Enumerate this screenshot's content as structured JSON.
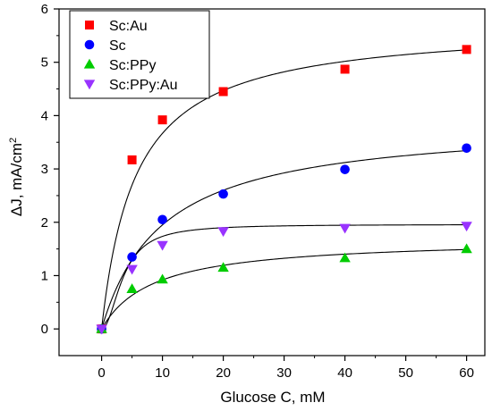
{
  "chart_data": {
    "type": "scatter",
    "title": "",
    "xlabel": "Glucose C, mM",
    "ylabel_main": "ΔJ, mA/cm",
    "ylabel_sup": "2",
    "xlim": [
      -7,
      63
    ],
    "ylim": [
      -0.5,
      6
    ],
    "xticks": [
      0,
      10,
      20,
      30,
      40,
      50,
      60
    ],
    "yticks": [
      0,
      1,
      2,
      3,
      4,
      5,
      6
    ],
    "grid": false,
    "legend_position": "top-left",
    "series": [
      {
        "name": "Sc:Au",
        "marker": "square",
        "color": "#ff0000",
        "x": [
          0,
          5,
          10,
          20,
          40,
          60
        ],
        "y": [
          0.0,
          3.17,
          3.92,
          4.45,
          4.87,
          5.24
        ],
        "fit": {
          "model": "michaelis-menten",
          "vmax": 5.72,
          "km": 5.6
        }
      },
      {
        "name": "Sc",
        "marker": "circle",
        "color": "#0000ff",
        "x": [
          0,
          5,
          10,
          20,
          40,
          60
        ],
        "y": [
          0.0,
          1.35,
          2.05,
          2.53,
          2.99,
          3.39
        ],
        "fit": {
          "model": "michaelis-menten",
          "vmax": 3.9,
          "km": 10.0
        }
      },
      {
        "name": "Sc:PPy",
        "marker": "triangle-up",
        "color": "#00cc00",
        "x": [
          0,
          5,
          10,
          20,
          40,
          60
        ],
        "y": [
          0.0,
          0.75,
          0.93,
          1.15,
          1.33,
          1.5
        ],
        "fit": {
          "model": "michaelis-menten",
          "vmax": 1.7,
          "km": 8.5
        }
      },
      {
        "name": "Sc:PPy:Au",
        "marker": "triangle-down",
        "color": "#9933ff",
        "x": [
          0,
          5,
          10,
          20,
          40,
          60
        ],
        "y": [
          0.0,
          1.12,
          1.57,
          1.83,
          1.89,
          1.93
        ],
        "fit": {
          "model": "hill",
          "vmax": 1.96,
          "km": 3.6,
          "n": 2.0
        }
      }
    ]
  }
}
